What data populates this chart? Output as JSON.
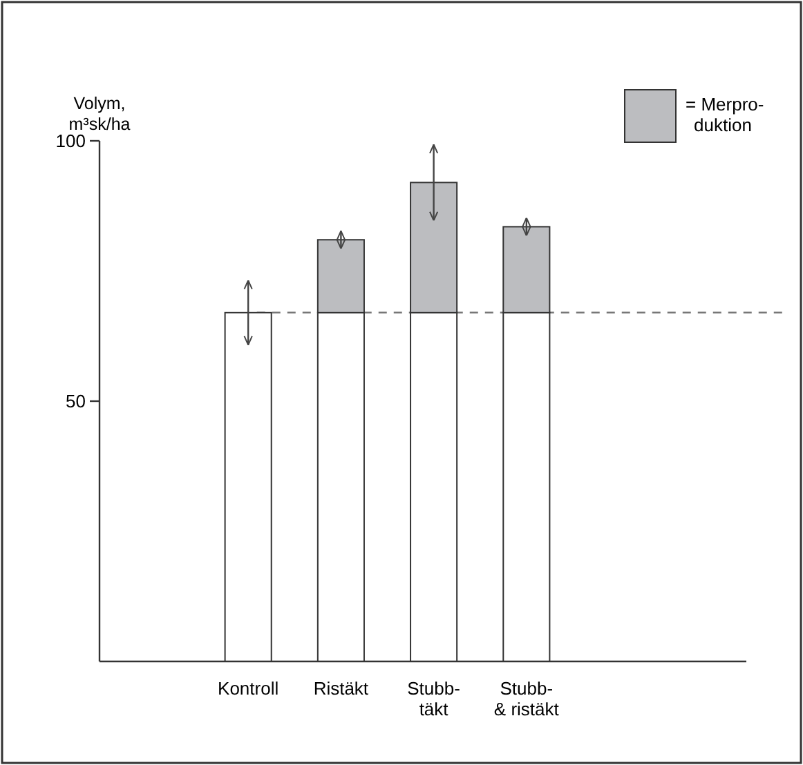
{
  "chart_data": {
    "type": "bar",
    "ylabel": "Volym,\nm³sk/ha",
    "categories": [
      "Kontroll",
      "Ristäkt",
      "Stubb-\ntäkt",
      "Stubb-\n& ristäkt"
    ],
    "stacked": true,
    "series": [
      {
        "color": "#ffffff",
        "values": [
          67,
          67,
          67,
          67
        ],
        "errors": [
          6.2,
          null,
          null,
          null
        ]
      },
      {
        "name": "= Merpro-\nduktion",
        "color": "#bcbdc0",
        "values": [
          null,
          14,
          25,
          16.5
        ],
        "errors": [
          null,
          1.7,
          7.3,
          1.7
        ]
      }
    ],
    "ylim": [
      0,
      100
    ],
    "yticks": [
      50,
      100
    ],
    "grid": false,
    "legend": "top right",
    "ref_lines": [
      {
        "axis": "y",
        "value": 67,
        "line_style": "dashed",
        "color": "#777777"
      }
    ]
  }
}
